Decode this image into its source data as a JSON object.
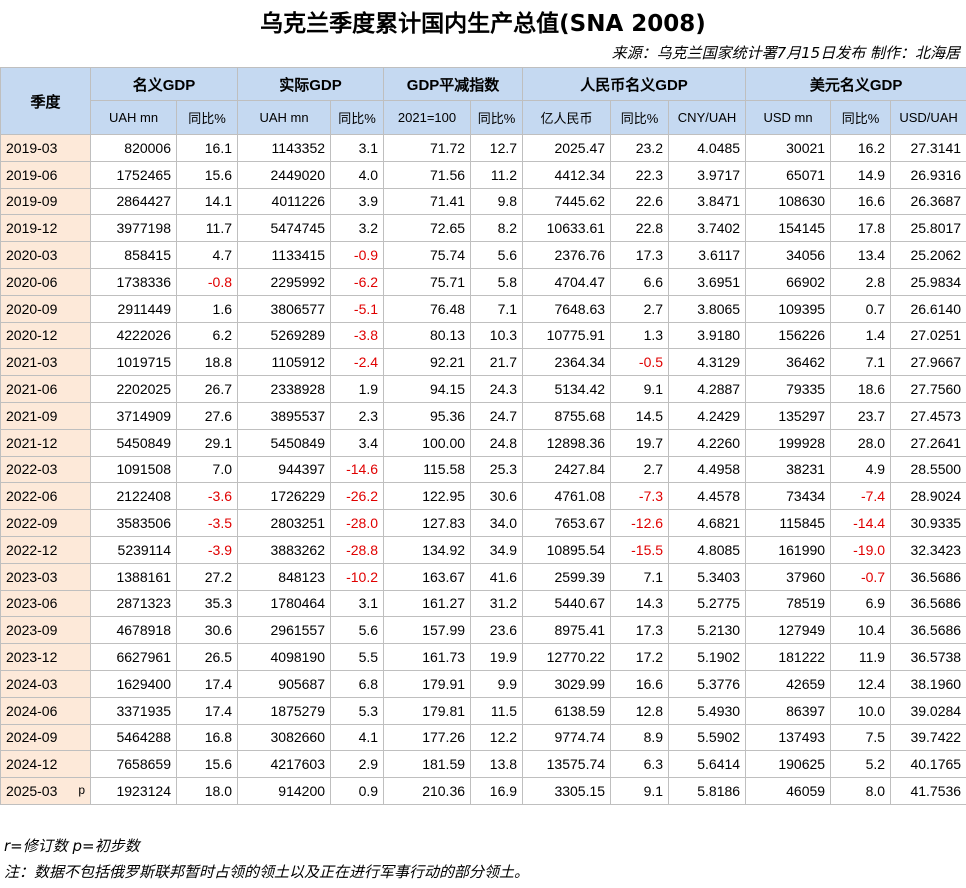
{
  "header": {
    "title": "乌克兰季度累计国内生产总值(SNA 2008)",
    "source": "来源：乌克兰国家统计署7月15日发布 制作：北海居"
  },
  "table": {
    "corner": "季度",
    "groups": [
      {
        "label": "名义GDP",
        "units": [
          "UAH mn",
          "同比%"
        ]
      },
      {
        "label": "实际GDP",
        "units": [
          "UAH mn",
          "同比%"
        ]
      },
      {
        "label": "GDP平减指数",
        "units": [
          "2021=100",
          "同比%"
        ]
      },
      {
        "label": "人民币名义GDP",
        "units": [
          "亿人民币",
          "同比%",
          "CNY/UAH"
        ]
      },
      {
        "label": "美元名义GDP",
        "units": [
          "USD mn",
          "同比%",
          "USD/UAH"
        ]
      }
    ],
    "rows": [
      {
        "label": "2019-03",
        "cells": [
          "820006",
          "16.1",
          "1143352",
          "3.1",
          "71.72",
          "12.7",
          "2025.47",
          "23.2",
          "4.0485",
          "30021",
          "16.2",
          "27.3141"
        ]
      },
      {
        "label": "2019-06",
        "cells": [
          "1752465",
          "15.6",
          "2449020",
          "4.0",
          "71.56",
          "11.2",
          "4412.34",
          "22.3",
          "3.9717",
          "65071",
          "14.9",
          "26.9316"
        ]
      },
      {
        "label": "2019-09",
        "cells": [
          "2864427",
          "14.1",
          "4011226",
          "3.9",
          "71.41",
          "9.8",
          "7445.62",
          "22.6",
          "3.8471",
          "108630",
          "16.6",
          "26.3687"
        ]
      },
      {
        "label": "2019-12",
        "cells": [
          "3977198",
          "11.7",
          "5474745",
          "3.2",
          "72.65",
          "8.2",
          "10633.61",
          "22.8",
          "3.7402",
          "154145",
          "17.8",
          "25.8017"
        ]
      },
      {
        "label": "2020-03",
        "cells": [
          "858415",
          "4.7",
          "1133415",
          "-0.9",
          "75.74",
          "5.6",
          "2376.76",
          "17.3",
          "3.6117",
          "34056",
          "13.4",
          "25.2062"
        ]
      },
      {
        "label": "2020-06",
        "cells": [
          "1738336",
          "-0.8",
          "2295992",
          "-6.2",
          "75.71",
          "5.8",
          "4704.47",
          "6.6",
          "3.6951",
          "66902",
          "2.8",
          "25.9834"
        ]
      },
      {
        "label": "2020-09",
        "cells": [
          "2911449",
          "1.6",
          "3806577",
          "-5.1",
          "76.48",
          "7.1",
          "7648.63",
          "2.7",
          "3.8065",
          "109395",
          "0.7",
          "26.6140"
        ]
      },
      {
        "label": "2020-12",
        "cells": [
          "4222026",
          "6.2",
          "5269289",
          "-3.8",
          "80.13",
          "10.3",
          "10775.91",
          "1.3",
          "3.9180",
          "156226",
          "1.4",
          "27.0251"
        ]
      },
      {
        "label": "2021-03",
        "cells": [
          "1019715",
          "18.8",
          "1105912",
          "-2.4",
          "92.21",
          "21.7",
          "2364.34",
          "-0.5",
          "4.3129",
          "36462",
          "7.1",
          "27.9667"
        ]
      },
      {
        "label": "2021-06",
        "cells": [
          "2202025",
          "26.7",
          "2338928",
          "1.9",
          "94.15",
          "24.3",
          "5134.42",
          "9.1",
          "4.2887",
          "79335",
          "18.6",
          "27.7560"
        ]
      },
      {
        "label": "2021-09",
        "cells": [
          "3714909",
          "27.6",
          "3895537",
          "2.3",
          "95.36",
          "24.7",
          "8755.68",
          "14.5",
          "4.2429",
          "135297",
          "23.7",
          "27.4573"
        ]
      },
      {
        "label": "2021-12",
        "cells": [
          "5450849",
          "29.1",
          "5450849",
          "3.4",
          "100.00",
          "24.8",
          "12898.36",
          "19.7",
          "4.2260",
          "199928",
          "28.0",
          "27.2641"
        ]
      },
      {
        "label": "2022-03",
        "cells": [
          "1091508",
          "7.0",
          "944397",
          "-14.6",
          "115.58",
          "25.3",
          "2427.84",
          "2.7",
          "4.4958",
          "38231",
          "4.9",
          "28.5500"
        ]
      },
      {
        "label": "2022-06",
        "cells": [
          "2122408",
          "-3.6",
          "1726229",
          "-26.2",
          "122.95",
          "30.6",
          "4761.08",
          "-7.3",
          "4.4578",
          "73434",
          "-7.4",
          "28.9024"
        ]
      },
      {
        "label": "2022-09",
        "cells": [
          "3583506",
          "-3.5",
          "2803251",
          "-28.0",
          "127.83",
          "34.0",
          "7653.67",
          "-12.6",
          "4.6821",
          "115845",
          "-14.4",
          "30.9335"
        ]
      },
      {
        "label": "2022-12",
        "cells": [
          "5239114",
          "-3.9",
          "3883262",
          "-28.8",
          "134.92",
          "34.9",
          "10895.54",
          "-15.5",
          "4.8085",
          "161990",
          "-19.0",
          "32.3423"
        ]
      },
      {
        "label": "2023-03",
        "cells": [
          "1388161",
          "27.2",
          "848123",
          "-10.2",
          "163.67",
          "41.6",
          "2599.39",
          "7.1",
          "5.3403",
          "37960",
          "-0.7",
          "36.5686"
        ]
      },
      {
        "label": "2023-06",
        "cells": [
          "2871323",
          "35.3",
          "1780464",
          "3.1",
          "161.27",
          "31.2",
          "5440.67",
          "14.3",
          "5.2775",
          "78519",
          "6.9",
          "36.5686"
        ]
      },
      {
        "label": "2023-09",
        "cells": [
          "4678918",
          "30.6",
          "2961557",
          "5.6",
          "157.99",
          "23.6",
          "8975.41",
          "17.3",
          "5.2130",
          "127949",
          "10.4",
          "36.5686"
        ]
      },
      {
        "label": "2023-12",
        "cells": [
          "6627961",
          "26.5",
          "4098190",
          "5.5",
          "161.73",
          "19.9",
          "12770.22",
          "17.2",
          "5.1902",
          "181222",
          "11.9",
          "36.5738"
        ]
      },
      {
        "label": "2024-03",
        "cells": [
          "1629400",
          "17.4",
          "905687",
          "6.8",
          "179.91",
          "9.9",
          "3029.99",
          "16.6",
          "5.3776",
          "42659",
          "12.4",
          "38.1960"
        ]
      },
      {
        "label": "2024-06",
        "cells": [
          "3371935",
          "17.4",
          "1875279",
          "5.3",
          "179.81",
          "11.5",
          "6138.59",
          "12.8",
          "5.4930",
          "86397",
          "10.0",
          "39.0284"
        ]
      },
      {
        "label": "2024-09",
        "cells": [
          "5464288",
          "16.8",
          "3082660",
          "4.1",
          "177.26",
          "12.2",
          "9774.74",
          "8.9",
          "5.5902",
          "137493",
          "7.5",
          "39.7422"
        ]
      },
      {
        "label": "2024-12",
        "cells": [
          "7658659",
          "15.6",
          "4217603",
          "2.9",
          "181.59",
          "13.8",
          "13575.74",
          "6.3",
          "5.6414",
          "190625",
          "5.2",
          "40.1765"
        ]
      },
      {
        "label": "2025-03",
        "flag": "p",
        "cells": [
          "1923124",
          "18.0",
          "914200",
          "0.9",
          "210.36",
          "16.9",
          "3305.15",
          "9.1",
          "5.8186",
          "46059",
          "8.0",
          "41.7536"
        ]
      }
    ]
  },
  "footnotes": [
    "r=修订数 p=初步数",
    "注：数据不包括俄罗斯联邦暂时占领的领土以及正在进行军事行动的部分领土。"
  ]
}
